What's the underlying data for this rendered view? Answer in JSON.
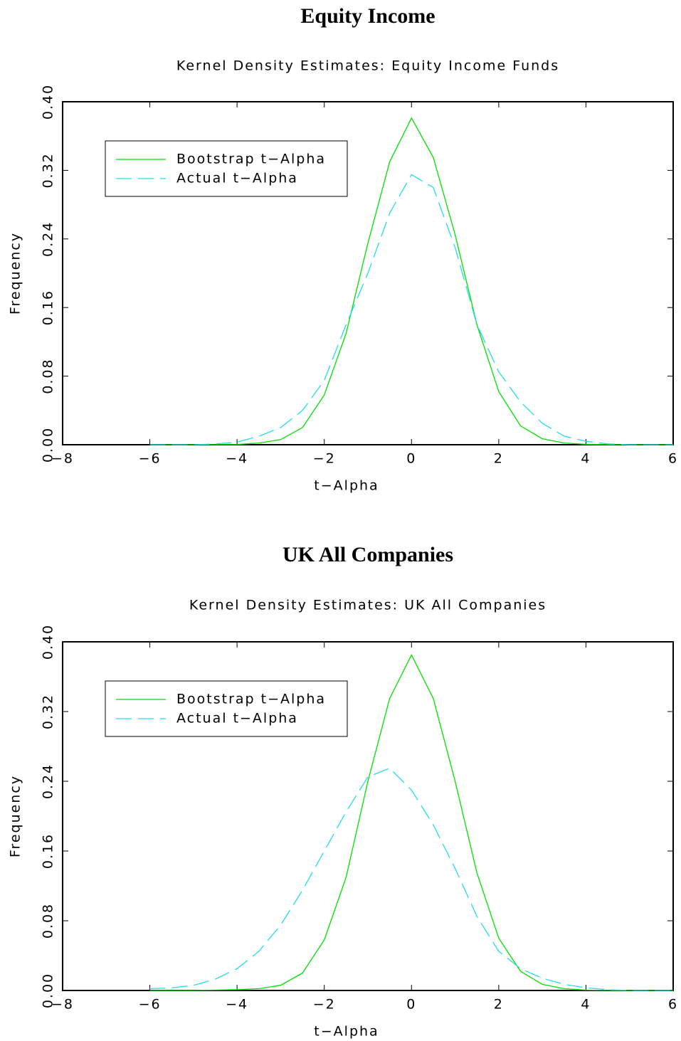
{
  "chart_data": [
    {
      "type": "line",
      "heading": "Equity Income",
      "title": "Kernel Density Estimates: Equity Income Funds",
      "xlabel": "t−Alpha",
      "ylabel": "Frequency",
      "x": [
        -6,
        -5.5,
        -5,
        -4.5,
        -4,
        -3.5,
        -3,
        -2.5,
        -2,
        -1.5,
        -1,
        -0.5,
        0,
        0.5,
        1,
        1.5,
        2,
        2.5,
        3,
        3.5,
        4,
        4.5,
        5,
        5.5,
        6
      ],
      "series": [
        {
          "name": "Bootstrap t−Alpha",
          "color": "#00e000",
          "style": "solid",
          "values": [
            0,
            0,
            0,
            0.0001,
            0.0003,
            0.002,
            0.006,
            0.02,
            0.058,
            0.13,
            0.235,
            0.33,
            0.381,
            0.335,
            0.245,
            0.14,
            0.062,
            0.022,
            0.007,
            0.002,
            0.0005,
            0.0001,
            0,
            0,
            0
          ]
        },
        {
          "name": "Actual t−Alpha",
          "color": "#22dde8",
          "style": "dashed",
          "values": [
            0,
            0,
            0,
            0.001,
            0.003,
            0.01,
            0.02,
            0.04,
            0.075,
            0.14,
            0.2,
            0.27,
            0.315,
            0.3,
            0.23,
            0.14,
            0.085,
            0.05,
            0.025,
            0.01,
            0.004,
            0.001,
            0,
            0,
            0
          ]
        }
      ],
      "xlim": [
        -8,
        6
      ],
      "ylim": [
        0,
        0.4
      ],
      "xticks": [
        {
          "value": -8,
          "label": "−8"
        },
        {
          "value": -6,
          "label": "−6"
        },
        {
          "value": -4,
          "label": "−4"
        },
        {
          "value": -2,
          "label": "−2"
        },
        0,
        2,
        4,
        6
      ],
      "yticks": [
        {
          "value": 0,
          "label": "0.00"
        },
        {
          "value": 0.08,
          "label": "0.08"
        },
        {
          "value": 0.16,
          "label": "0.16"
        },
        {
          "value": 0.24,
          "label": "0.24"
        },
        {
          "value": 0.32,
          "label": "0.32"
        },
        {
          "value": 0.4,
          "label": "0.40"
        }
      ],
      "legend": "upper left"
    },
    {
      "type": "line",
      "heading": "UK All Companies",
      "title": "Kernel Density Estimates: UK All Companies",
      "xlabel": "t−Alpha",
      "ylabel": "Frequency",
      "x": [
        -6,
        -5.5,
        -5,
        -4.5,
        -4,
        -3.5,
        -3,
        -2.5,
        -2,
        -1.5,
        -1,
        -0.5,
        0,
        0.5,
        1,
        1.5,
        2,
        2.5,
        3,
        3.5,
        4,
        4.5,
        5,
        5.5,
        6
      ],
      "series": [
        {
          "name": "Bootstrap t−Alpha",
          "color": "#00e000",
          "style": "solid",
          "values": [
            0,
            0,
            0,
            0.0005,
            0.001,
            0.002,
            0.006,
            0.02,
            0.058,
            0.13,
            0.24,
            0.335,
            0.385,
            0.335,
            0.24,
            0.135,
            0.06,
            0.022,
            0.007,
            0.002,
            0.0005,
            0.0001,
            0,
            0,
            0
          ]
        },
        {
          "name": "Actual t−Alpha",
          "color": "#22dde8",
          "style": "dashed",
          "values": [
            0.002,
            0.003,
            0.006,
            0.013,
            0.025,
            0.045,
            0.075,
            0.115,
            0.16,
            0.205,
            0.245,
            0.255,
            0.23,
            0.19,
            0.14,
            0.085,
            0.045,
            0.025,
            0.014,
            0.007,
            0.003,
            0.001,
            0,
            0,
            0
          ]
        }
      ],
      "xlim": [
        -8,
        6
      ],
      "ylim": [
        0,
        0.4
      ],
      "xticks": [
        {
          "value": -8,
          "label": "−8"
        },
        {
          "value": -6,
          "label": "−6"
        },
        {
          "value": -4,
          "label": "−4"
        },
        {
          "value": -2,
          "label": "−2"
        },
        0,
        2,
        4,
        6
      ],
      "yticks": [
        {
          "value": 0,
          "label": "0.00"
        },
        {
          "value": 0.08,
          "label": "0.08"
        },
        {
          "value": 0.16,
          "label": "0.16"
        },
        {
          "value": 0.24,
          "label": "0.24"
        },
        {
          "value": 0.32,
          "label": "0.32"
        },
        {
          "value": 0.4,
          "label": "0.40"
        }
      ],
      "legend": "upper left"
    }
  ]
}
